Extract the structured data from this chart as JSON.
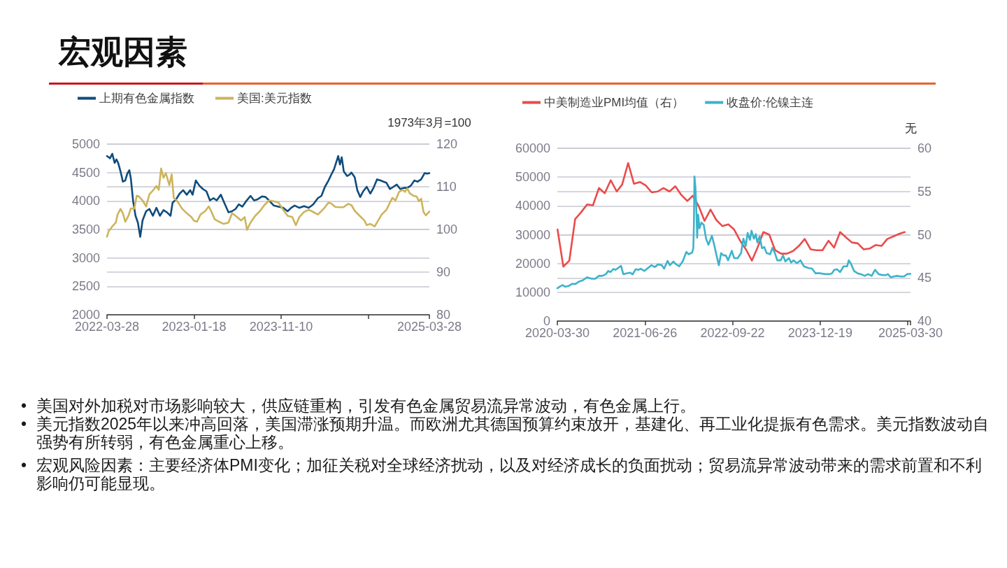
{
  "chart_data": [
    {
      "type": "other",
      "title": "宏观因素"
    },
    {
      "type": "line",
      "y2label": "1973年3月=100",
      "xlim": [
        "2022-03-28",
        "2025-03-28"
      ],
      "xticks": [
        "2022-03-28",
        "2023-01-18",
        "2023-11-10",
        {
          "value": "2024-09-02",
          "label": null
        },
        "2025-03-28"
      ],
      "ylim": [
        2000,
        5000
      ],
      "yticks": [
        2000,
        2500,
        3000,
        3500,
        4000,
        4500,
        5000
      ],
      "y2lim": [
        80,
        120
      ],
      "y2ticks": [
        80,
        90,
        100,
        110,
        120
      ],
      "grid": "y",
      "legend": "top left",
      "series": [
        {
          "name": "上期有色金属指数",
          "color": "#0f4c7d",
          "x": [
            "2022-03-28",
            "2022-04-07",
            "2022-04-15",
            "2022-04-23",
            "2022-04-29",
            "2022-05-05",
            "2022-05-13",
            "2022-05-21",
            "2022-05-29",
            "2022-06-05",
            "2022-06-12",
            "2022-06-17",
            "2022-06-25",
            "2022-07-03",
            "2022-07-11",
            "2022-07-19",
            "2022-07-27",
            "2022-08-08",
            "2022-08-19",
            "2022-08-31",
            "2022-09-12",
            "2022-09-24",
            "2022-10-06",
            "2022-10-18",
            "2022-10-30",
            "2022-11-06",
            "2022-11-18",
            "2022-11-30",
            "2022-12-12",
            "2022-12-24",
            "2023-01-05",
            "2023-01-13",
            "2023-01-24",
            "2023-02-05",
            "2023-02-17",
            "2023-03-01",
            "2023-03-13",
            "2023-03-25",
            "2023-04-05",
            "2023-04-19",
            "2023-04-29",
            "2023-05-15",
            "2023-05-27",
            "2023-06-08",
            "2023-06-19",
            "2023-07-01",
            "2023-07-13",
            "2023-07-29",
            "2023-08-10",
            "2023-08-22",
            "2023-09-06",
            "2023-09-18",
            "2023-09-30",
            "2023-10-16",
            "2023-11-01",
            "2023-11-17",
            "2023-12-02",
            "2023-12-14",
            "2023-12-26",
            "2024-01-11",
            "2024-01-27",
            "2024-02-12",
            "2024-02-27",
            "2024-03-14",
            "2024-03-26",
            "2024-04-07",
            "2024-04-19",
            "2024-04-30",
            "2024-05-08",
            "2024-05-16",
            "2024-05-22",
            "2024-05-28",
            "2024-06-03",
            "2024-06-10",
            "2024-06-21",
            "2024-06-29",
            "2024-07-06",
            "2024-07-17",
            "2024-07-26",
            "2024-08-05",
            "2024-08-15",
            "2024-08-27",
            "2024-09-08",
            "2024-09-19",
            "2024-10-01",
            "2024-10-13",
            "2024-10-23",
            "2024-11-02",
            "2024-11-14",
            "2024-11-26",
            "2024-12-07",
            "2024-12-19",
            "2024-12-31",
            "2025-01-12",
            "2025-01-24",
            "2025-02-05",
            "2025-02-16",
            "2025-02-28",
            "2025-03-12",
            "2025-03-20",
            "2025-03-28"
          ],
          "values": [
            4790,
            4750,
            4830,
            4670,
            4730,
            4670,
            4520,
            4340,
            4360,
            4480,
            4540,
            4400,
            3990,
            3740,
            3620,
            3370,
            3660,
            3820,
            3860,
            3740,
            3880,
            3740,
            3840,
            3800,
            3740,
            3970,
            4030,
            4130,
            4190,
            4110,
            4190,
            4110,
            4360,
            4270,
            4210,
            4170,
            4010,
            4050,
            4010,
            4110,
            3990,
            3800,
            3820,
            3860,
            3940,
            3900,
            3990,
            4090,
            4010,
            4030,
            4080,
            4070,
            4010,
            3920,
            3900,
            3880,
            3820,
            3880,
            3920,
            3880,
            3910,
            3880,
            3940,
            4050,
            4090,
            4250,
            4360,
            4480,
            4560,
            4690,
            4790,
            4640,
            4770,
            4520,
            4440,
            4460,
            4500,
            4420,
            4190,
            4070,
            4170,
            4250,
            4130,
            4230,
            4380,
            4360,
            4340,
            4320,
            4210,
            4250,
            4290,
            4210,
            4230,
            4230,
            4270,
            4360,
            4340,
            4380,
            4490,
            4480,
            4490
          ]
        },
        {
          "name": "美国:美元指数",
          "color": "#cdb45c",
          "axis": "y2",
          "x": [
            "2022-03-28",
            "2022-04-03",
            "2022-04-15",
            "2022-04-27",
            "2022-05-03",
            "2022-05-13",
            "2022-05-21",
            "2022-05-29",
            "2022-06-09",
            "2022-06-17",
            "2022-06-29",
            "2022-07-07",
            "2022-07-15",
            "2022-07-27",
            "2022-08-08",
            "2022-08-19",
            "2022-08-31",
            "2022-09-12",
            "2022-09-20",
            "2022-09-28",
            "2022-10-06",
            "2022-10-14",
            "2022-10-26",
            "2022-11-03",
            "2022-11-10",
            "2022-11-22",
            "2022-12-08",
            "2022-12-24",
            "2023-01-09",
            "2023-01-17",
            "2023-01-28",
            "2023-02-09",
            "2023-02-25",
            "2023-03-09",
            "2023-03-17",
            "2023-03-29",
            "2023-04-13",
            "2023-04-29",
            "2023-05-15",
            "2023-05-27",
            "2023-06-08",
            "2023-06-27",
            "2023-07-09",
            "2023-07-17",
            "2023-07-29",
            "2023-08-14",
            "2023-08-30",
            "2023-09-14",
            "2023-09-30",
            "2023-10-16",
            "2023-11-01",
            "2023-11-17",
            "2023-12-02",
            "2023-12-18",
            "2023-12-30",
            "2024-01-11",
            "2024-01-27",
            "2024-02-12",
            "2024-02-27",
            "2024-03-14",
            "2024-03-26",
            "2024-04-07",
            "2024-04-19",
            "2024-04-30",
            "2024-05-12",
            "2024-05-24",
            "2024-06-09",
            "2024-06-25",
            "2024-07-06",
            "2024-07-18",
            "2024-08-03",
            "2024-08-19",
            "2024-08-27",
            "2024-09-08",
            "2024-09-23",
            "2024-10-05",
            "2024-10-17",
            "2024-11-02",
            "2024-11-14",
            "2024-11-22",
            "2024-12-03",
            "2024-12-15",
            "2024-12-27",
            "2025-01-04",
            "2025-01-12",
            "2025-01-20",
            "2025-02-01",
            "2025-02-13",
            "2025-02-20",
            "2025-02-28",
            "2025-03-08",
            "2025-03-16",
            "2025-03-28"
          ],
          "values": [
            98.3,
            99.6,
            100.7,
            101.6,
            103.5,
            104.8,
            103.8,
            101.8,
            103.2,
            104.9,
            104.9,
            107.9,
            107.7,
            106.8,
            105.4,
            108.2,
            109.1,
            110.2,
            109.3,
            114.3,
            112.1,
            113.2,
            110.4,
            112.9,
            107.4,
            106.6,
            104.9,
            103.8,
            102.9,
            102.1,
            101.8,
            103.5,
            104.3,
            105.4,
            104.3,
            102.4,
            101.8,
            101.3,
            101.6,
            103.8,
            103.2,
            102.1,
            102.9,
            99.9,
            101.6,
            103.2,
            104.3,
            105.7,
            106.8,
            106.6,
            106.3,
            104.6,
            103.2,
            102.9,
            101.0,
            102.9,
            104.1,
            104.6,
            104.1,
            103.5,
            104.3,
            105.2,
            106.3,
            106.0,
            105.3,
            105.2,
            105.2,
            106.0,
            105.7,
            104.3,
            103.2,
            102.1,
            101.0,
            101.3,
            100.7,
            102.1,
            103.5,
            104.6,
            106.3,
            107.4,
            106.8,
            108.8,
            109.3,
            108.8,
            109.6,
            108.5,
            107.9,
            107.7,
            106.6,
            107.2,
            104.1,
            103.3,
            104.2
          ]
        }
      ]
    },
    {
      "type": "line",
      "y2label": "无",
      "xlim": [
        "2020-03-30",
        "2025-03-30"
      ],
      "xticks": [
        "2020-03-30",
        "2021-06-26",
        "2022-09-22",
        "2023-12-19",
        {
          "value": "2025-03-16",
          "label": null
        },
        "2025-03-30"
      ],
      "ylim": [
        0,
        60000
      ],
      "yticks": [
        0,
        10000,
        20000,
        30000,
        40000,
        50000,
        60000
      ],
      "y2lim": [
        40,
        60
      ],
      "y2ticks": [
        40,
        45,
        50,
        55,
        60
      ],
      "grid": "y",
      "legend": "top left",
      "series": [
        {
          "name": "中美制造业PMI均值（右）",
          "color": "#ea4b4b",
          "axis": "y2",
          "x": [
            "2020-03-31",
            "2020-04-30",
            "2020-05-31",
            "2020-06-30",
            "2020-07-31",
            "2020-08-31",
            "2020-09-30",
            "2020-10-31",
            "2020-11-30",
            "2020-12-31",
            "2021-01-31",
            "2021-02-28",
            "2021-03-31",
            "2021-04-30",
            "2021-05-31",
            "2021-06-30",
            "2021-07-31",
            "2021-08-31",
            "2021-09-30",
            "2021-10-31",
            "2021-11-30",
            "2021-12-31",
            "2022-01-31",
            "2022-02-28",
            "2022-03-31",
            "2022-04-30",
            "2022-05-31",
            "2022-06-30",
            "2022-07-31",
            "2022-08-31",
            "2022-09-30",
            "2022-10-31",
            "2022-11-30",
            "2022-12-31",
            "2023-01-31",
            "2023-02-28",
            "2023-03-31",
            "2023-04-30",
            "2023-05-31",
            "2023-06-30",
            "2023-07-31",
            "2023-08-31",
            "2023-09-30",
            "2023-10-31",
            "2023-11-30",
            "2023-12-31",
            "2024-01-31",
            "2024-02-29",
            "2024-03-31",
            "2024-04-30",
            "2024-05-31",
            "2024-06-30",
            "2024-07-31",
            "2024-08-31",
            "2024-09-30",
            "2024-10-31",
            "2024-11-30",
            "2024-12-31",
            "2025-01-31",
            "2025-02-28"
          ],
          "values": [
            50.6,
            46.3,
            47.0,
            51.8,
            52.6,
            53.5,
            53.4,
            55.4,
            54.8,
            56.3,
            55.0,
            55.8,
            58.3,
            55.9,
            56.1,
            55.7,
            54.9,
            55.0,
            55.4,
            55.0,
            55.6,
            54.6,
            53.9,
            54.5,
            53.3,
            51.6,
            52.9,
            51.7,
            51.0,
            51.2,
            50.6,
            49.3,
            48.3,
            47.0,
            48.6,
            50.3,
            50.0,
            48.2,
            47.8,
            47.8,
            48.1,
            48.7,
            49.5,
            48.3,
            48.2,
            48.2,
            49.3,
            48.5,
            50.3,
            49.7,
            49.1,
            49.0,
            48.3,
            48.4,
            48.8,
            48.7,
            49.5,
            49.8,
            50.1,
            50.3
          ]
        },
        {
          "name": "收盘价:伦镍主连",
          "color": "#3db3cb",
          "x": [
            "2020-03-30",
            "2020-04-15",
            "2020-04-27",
            "2020-05-09",
            "2020-05-27",
            "2020-06-14",
            "2020-07-02",
            "2020-07-20",
            "2020-08-07",
            "2020-08-31",
            "2020-09-24",
            "2020-10-12",
            "2020-10-31",
            "2020-11-18",
            "2020-12-06",
            "2020-12-18",
            "2020-12-30",
            "2021-01-13",
            "2021-01-25",
            "2021-02-10",
            "2021-02-22",
            "2021-03-06",
            "2021-03-24",
            "2021-04-11",
            "2021-04-23",
            "2021-05-09",
            "2021-05-23",
            "2021-06-04",
            "2021-06-23",
            "2021-07-11",
            "2021-07-29",
            "2021-08-16",
            "2021-09-03",
            "2021-09-21",
            "2021-10-03",
            "2021-10-21",
            "2021-11-02",
            "2021-11-20",
            "2021-12-02",
            "2021-12-20",
            "2022-01-07",
            "2022-01-26",
            "2022-02-07",
            "2022-02-25",
            "2022-03-03",
            "2022-03-06",
            "2022-03-09",
            "2022-03-14",
            "2022-03-18",
            "2022-03-23",
            "2022-03-28",
            "2022-04-04",
            "2022-04-14",
            "2022-04-26",
            "2022-05-08",
            "2022-05-20",
            "2022-06-07",
            "2022-06-19",
            "2022-07-01",
            "2022-07-13",
            "2022-07-25",
            "2022-08-06",
            "2022-08-18",
            "2022-08-30",
            "2022-09-18",
            "2022-09-30",
            "2022-10-18",
            "2022-11-05",
            "2022-11-17",
            "2022-11-29",
            "2022-12-09",
            "2022-12-21",
            "2022-12-29",
            "2023-01-10",
            "2023-01-20",
            "2023-01-28",
            "2023-02-09",
            "2023-02-21",
            "2023-03-05",
            "2023-03-17",
            "2023-04-04",
            "2023-04-16",
            "2023-04-29",
            "2023-05-11",
            "2023-05-29",
            "2023-06-10",
            "2023-06-22",
            "2023-07-10",
            "2023-07-22",
            "2023-08-03",
            "2023-08-21",
            "2023-09-08",
            "2023-09-26",
            "2023-10-20",
            "2023-11-07",
            "2023-11-25",
            "2023-12-20",
            "2024-01-13",
            "2024-02-06",
            "2024-02-18",
            "2024-03-01",
            "2024-03-15",
            "2024-03-31",
            "2024-04-18",
            "2024-05-06",
            "2024-05-15",
            "2024-05-27",
            "2024-06-11",
            "2024-06-29",
            "2024-07-17",
            "2024-08-05",
            "2024-08-23",
            "2024-09-10",
            "2024-09-28",
            "2024-10-16",
            "2024-11-03",
            "2024-11-21",
            "2024-12-03",
            "2024-12-18",
            "2025-01-02",
            "2025-01-20",
            "2025-02-07",
            "2025-02-25",
            "2025-03-12",
            "2025-03-30"
          ],
          "values": [
            11400,
            12100,
            12500,
            11900,
            12200,
            12900,
            12900,
            13700,
            14100,
            15200,
            14700,
            14700,
            15700,
            15700,
            16300,
            17400,
            17000,
            18100,
            17800,
            18600,
            19200,
            16300,
            16600,
            16800,
            16200,
            18000,
            17800,
            18200,
            17400,
            18400,
            19400,
            18800,
            19700,
            19400,
            18200,
            20900,
            19400,
            20700,
            19800,
            19000,
            20700,
            24000,
            23200,
            23800,
            25300,
            33400,
            50200,
            46400,
            40200,
            29000,
            37000,
            32200,
            34200,
            33400,
            28600,
            26500,
            29600,
            26500,
            22800,
            19400,
            23600,
            22800,
            22800,
            21100,
            24400,
            21900,
            21800,
            23600,
            28600,
            26100,
            30600,
            28200,
            31400,
            28600,
            30200,
            27300,
            29400,
            25300,
            25700,
            23600,
            23200,
            25400,
            23600,
            21100,
            21100,
            22800,
            20700,
            21900,
            20300,
            21100,
            20100,
            21100,
            19000,
            18400,
            18200,
            16600,
            16600,
            16300,
            16300,
            16600,
            17800,
            18000,
            17000,
            19000,
            19000,
            21100,
            19800,
            17400,
            16600,
            16300,
            15700,
            16300,
            15700,
            17800,
            16300,
            16000,
            15900,
            16300,
            15200,
            15500,
            15700,
            15500,
            15500,
            16300,
            16400
          ]
        }
      ]
    },
    {
      "type": "other",
      "annotations": [
        "• 美国对外加税对市场影响较大，供应链重构，引发有色金属贸易流异常波动，有色金属上行。",
        "• 美元指数2025年以来冲高回落，美国滞涨预期升温。而欧洲尤其德国预算约束放开，基建化、再工业化提振有色需求。美元指数波动自强势有所转弱，有色金属重心上移。",
        "• 宏观风险因素：主要经济体PMI变化；加征关税对全球经济扰动，以及对经济成长的负面扰动；贸易流异常波动带来的需求前置和不利影响仍可能显现。"
      ]
    }
  ]
}
